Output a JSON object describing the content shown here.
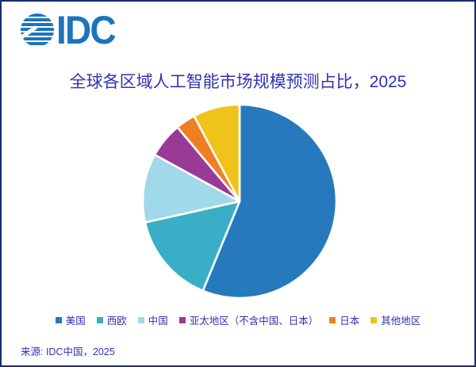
{
  "logo": {
    "text": "IDC"
  },
  "source": "来源: IDC中国，2025",
  "colors": {
    "brand": "#1c75bc",
    "border": "#1a2a6c",
    "text": "#3131b5",
    "slice_gap": "#ffffff"
  },
  "chart_data": {
    "type": "pie",
    "title": "全球各区域人工智能市场规模预测占比，2025",
    "categories": [
      "美国",
      "西欧",
      "中国",
      "亚太地区（不含中国、日本）",
      "日本",
      "其他地区"
    ],
    "values": [
      56.2,
      15.3,
      11.5,
      5.9,
      3.3,
      7.8
    ],
    "unit": "percent_share",
    "colors": [
      "#2679bd",
      "#3baec7",
      "#a0d9e9",
      "#9a3a97",
      "#f07f22",
      "#efc31a"
    ],
    "start_angle_deg": 0,
    "direction": "clockwise",
    "legend_position": "bottom",
    "data_labels": "none"
  }
}
